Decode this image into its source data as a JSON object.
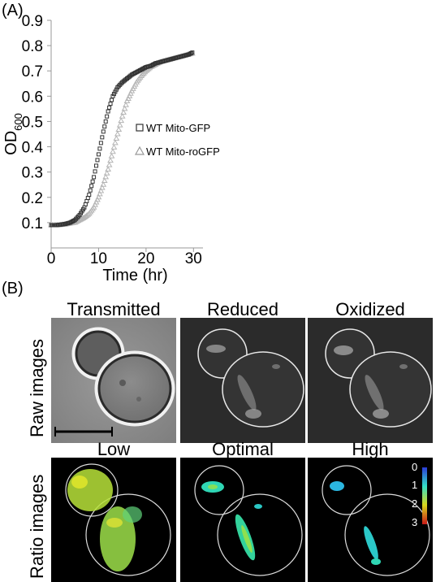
{
  "panel_a": {
    "label": "(A)",
    "chart_data": {
      "type": "scatter",
      "xlabel": "Time (hr)",
      "ylabel_main": "OD",
      "ylabel_sub": "600",
      "xlim": [
        0,
        32
      ],
      "ylim": [
        0,
        0.9
      ],
      "xticks": [
        0,
        10,
        20,
        30
      ],
      "yticks": [
        0.1,
        0.2,
        0.3,
        0.4,
        0.5,
        0.6,
        0.7,
        0.8,
        0.9
      ],
      "legend_placement": "right",
      "grid": false,
      "series": [
        {
          "name": "WT Mito-GFP",
          "marker": "square",
          "color": "#333333",
          "x": [
            0,
            1,
            2,
            3,
            4,
            5,
            6,
            7,
            8,
            9,
            10,
            11,
            12,
            13,
            14,
            15,
            16,
            17,
            18,
            19,
            20,
            21,
            22,
            23,
            24,
            25,
            26,
            27,
            28,
            29,
            30
          ],
          "y": [
            0.09,
            0.09,
            0.092,
            0.095,
            0.1,
            0.11,
            0.13,
            0.16,
            0.21,
            0.28,
            0.37,
            0.46,
            0.54,
            0.6,
            0.635,
            0.655,
            0.67,
            0.685,
            0.695,
            0.705,
            0.715,
            0.72,
            0.73,
            0.735,
            0.74,
            0.745,
            0.75,
            0.755,
            0.76,
            0.765,
            0.775
          ]
        },
        {
          "name": "WT Mito-roGFP",
          "marker": "triangle",
          "color": "#b5b5b5",
          "x": [
            0,
            1,
            2,
            3,
            4,
            5,
            6,
            7,
            8,
            9,
            10,
            11,
            12,
            13,
            14,
            15,
            16,
            17,
            18,
            19,
            20,
            21,
            22,
            23,
            24,
            25,
            26,
            27,
            28,
            29,
            30
          ],
          "y": [
            0.09,
            0.09,
            0.091,
            0.093,
            0.097,
            0.1,
            0.11,
            0.12,
            0.135,
            0.16,
            0.2,
            0.25,
            0.31,
            0.38,
            0.45,
            0.52,
            0.58,
            0.62,
            0.655,
            0.68,
            0.7,
            0.715,
            0.725,
            0.735,
            0.74,
            0.745,
            0.75,
            0.755,
            0.76,
            0.765,
            0.77
          ]
        }
      ]
    }
  },
  "panel_b": {
    "label": "(B)",
    "row_labels": [
      "Raw images",
      "Ratio images"
    ],
    "raw_titles": [
      "Transmitted",
      "Reduced",
      "Oxidized"
    ],
    "ratio_titles": [
      "Low",
      "Optimal",
      "High"
    ],
    "colorbar_ticks": [
      "0",
      "1",
      "2",
      "3"
    ],
    "colors": {
      "low_ratio": "#2b3bd8",
      "mid_ratio": "#33e0c8",
      "high_ratio": "#d8d81c",
      "top_ratio": "#c81818"
    }
  }
}
